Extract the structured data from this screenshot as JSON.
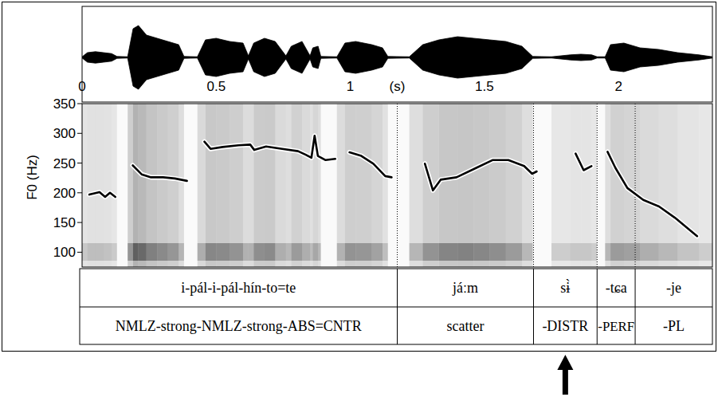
{
  "chart_data": {
    "type": "line",
    "y_label": "F0 (Hz)",
    "x_label": "(s)",
    "xlim": [
      0,
      2.35
    ],
    "xticks": [
      0,
      0.5,
      1,
      1.5,
      2
    ],
    "ylim": [
      75,
      350
    ],
    "yticks": [
      100,
      150,
      200,
      250,
      300,
      350
    ],
    "color": "#000000",
    "x": [
      0.027,
      0.065,
      0.086,
      0.104,
      0.124,
      0.156,
      0.189,
      0.222,
      0.257,
      0.302,
      0.346,
      0.391,
      0.42,
      0.456,
      0.479,
      0.524,
      0.583,
      0.627,
      0.642,
      0.686,
      0.746,
      0.805,
      0.834,
      0.855,
      0.867,
      0.879,
      0.908,
      0.944,
      0.97,
      0.997,
      1.041,
      1.086,
      1.13,
      1.154,
      1.21,
      1.278,
      1.308,
      1.337,
      1.396,
      1.47,
      1.53,
      1.589,
      1.648,
      1.678,
      1.695,
      1.77,
      1.84,
      1.87,
      1.899,
      1.93,
      1.959,
      1.988,
      2.033,
      2.092,
      2.151,
      2.21,
      2.269,
      2.293
    ],
    "values": [
      197,
      201,
      193,
      200,
      193,
      null,
      246,
      231,
      226,
      226,
      224,
      220,
      null,
      286,
      274,
      277,
      280,
      281,
      272,
      278,
      274,
      270,
      264,
      259,
      296,
      262,
      255,
      257,
      null,
      268,
      262,
      249,
      228,
      226,
      null,
      249,
      204,
      222,
      226,
      242,
      255,
      255,
      245,
      232,
      236,
      null,
      266,
      238,
      245,
      null,
      269,
      242,
      208,
      188,
      177,
      158,
      136,
      127
    ],
    "waveform": {
      "x": [
        0,
        0.02,
        0.05,
        0.08,
        0.11,
        0.13,
        0.17,
        0.19,
        0.21,
        0.24,
        0.28,
        0.32,
        0.36,
        0.38,
        0.43,
        0.46,
        0.5,
        0.55,
        0.6,
        0.62,
        0.64,
        0.68,
        0.72,
        0.76,
        0.78,
        0.82,
        0.85,
        0.86,
        0.88,
        0.89,
        0.95,
        0.98,
        1.02,
        1.08,
        1.12,
        1.14,
        1.22,
        1.27,
        1.33,
        1.4,
        1.46,
        1.52,
        1.58,
        1.64,
        1.68,
        1.75,
        1.82,
        1.86,
        1.9,
        1.92,
        1.95,
        1.97,
        2.02,
        2.08,
        2.15,
        2.22,
        2.3,
        2.35
      ],
      "amplitude": [
        0.02,
        0.15,
        0.18,
        0.15,
        0.12,
        0.03,
        0.02,
        0.9,
        1.0,
        0.7,
        0.6,
        0.5,
        0.4,
        0.03,
        0.02,
        0.55,
        0.6,
        0.5,
        0.45,
        0.05,
        0.45,
        0.6,
        0.5,
        0.05,
        0.35,
        0.5,
        0.05,
        0.3,
        0.35,
        0.03,
        0.02,
        0.45,
        0.5,
        0.4,
        0.3,
        0.03,
        0.02,
        0.4,
        0.55,
        0.65,
        0.6,
        0.55,
        0.5,
        0.35,
        0.03,
        0.02,
        0.08,
        0.1,
        0.08,
        0.02,
        0.02,
        0.4,
        0.45,
        0.3,
        0.25,
        0.15,
        0.08,
        0.02
      ]
    },
    "tiers": {
      "boundaries": [
        0,
        1.175,
        1.683,
        1.92,
        2.062,
        2.35
      ],
      "words": [
        "i-pál-i-pál-hín-to=te",
        "jáːm",
        "sɨ̀",
        "-tɕa",
        "-je"
      ],
      "glosses": [
        "NMLZ-strong-NMLZ-strong-ABS=CNTR",
        "scatter",
        "-DISTR",
        "-PERF",
        "-PL"
      ]
    }
  }
}
